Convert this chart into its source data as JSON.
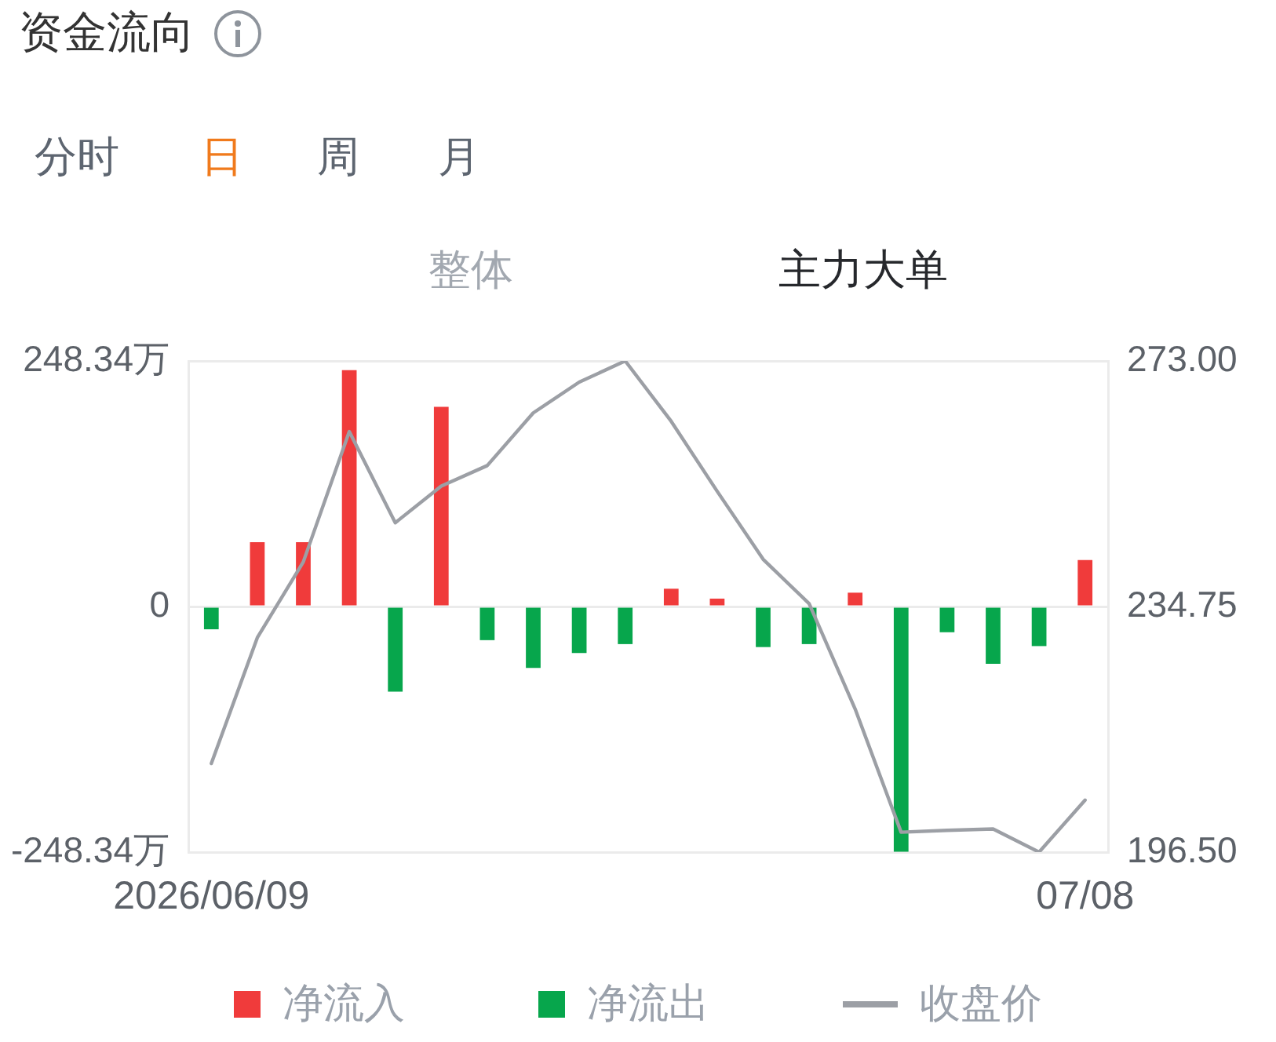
{
  "chart_data": {
    "type": "bar",
    "title": "资金流向",
    "annotations": [
      "分时",
      "日",
      "周",
      "月",
      "整体",
      "主力大单"
    ],
    "categories": [
      "2026/06/09",
      null,
      null,
      null,
      null,
      null,
      null,
      null,
      null,
      null,
      null,
      null,
      null,
      null,
      null,
      null,
      null,
      null,
      null,
      "07/08"
    ],
    "series": [
      {
        "name": "净流入",
        "color": "#f03b3b",
        "values": [
          null,
          65,
          65,
          239,
          null,
          202,
          null,
          null,
          null,
          null,
          18,
          8,
          null,
          null,
          14,
          null,
          null,
          null,
          null,
          47
        ]
      },
      {
        "name": "净流出",
        "color": "#07a64c",
        "values": [
          -23,
          null,
          null,
          null,
          -86,
          null,
          -34,
          -62,
          -47,
          -38,
          null,
          null,
          -41,
          -38,
          null,
          -248,
          -26,
          -58,
          -40,
          null
        ]
      },
      {
        "name": "收盘价",
        "type": "line",
        "axis": "y2",
        "color": "#9c9fa5",
        "values": [
          210.3,
          229.9,
          241.7,
          262.0,
          247.8,
          253.5,
          256.7,
          264.9,
          269.7,
          273,
          263.6,
          252.7,
          242.1,
          235.2,
          218.8,
          199.6,
          199.9,
          200.1,
          196.5,
          204.6
        ]
      }
    ],
    "stacked": true,
    "ylim": [
      -248.34,
      248.34
    ],
    "yticks": [
      {
        "value": -248.34,
        "label": "-248.34万"
      },
      0,
      {
        "value": 248.34,
        "label": "248.34万"
      }
    ],
    "y2lim": [
      196.5,
      273
    ],
    "y2ticks": [
      {
        "value": 196.5,
        "label": "196.50"
      },
      {
        "value": 234.75,
        "label": "234.75"
      },
      {
        "value": 273,
        "label": "273.00"
      }
    ],
    "grid": "y",
    "legend": "bottom",
    "marker": "none"
  }
}
